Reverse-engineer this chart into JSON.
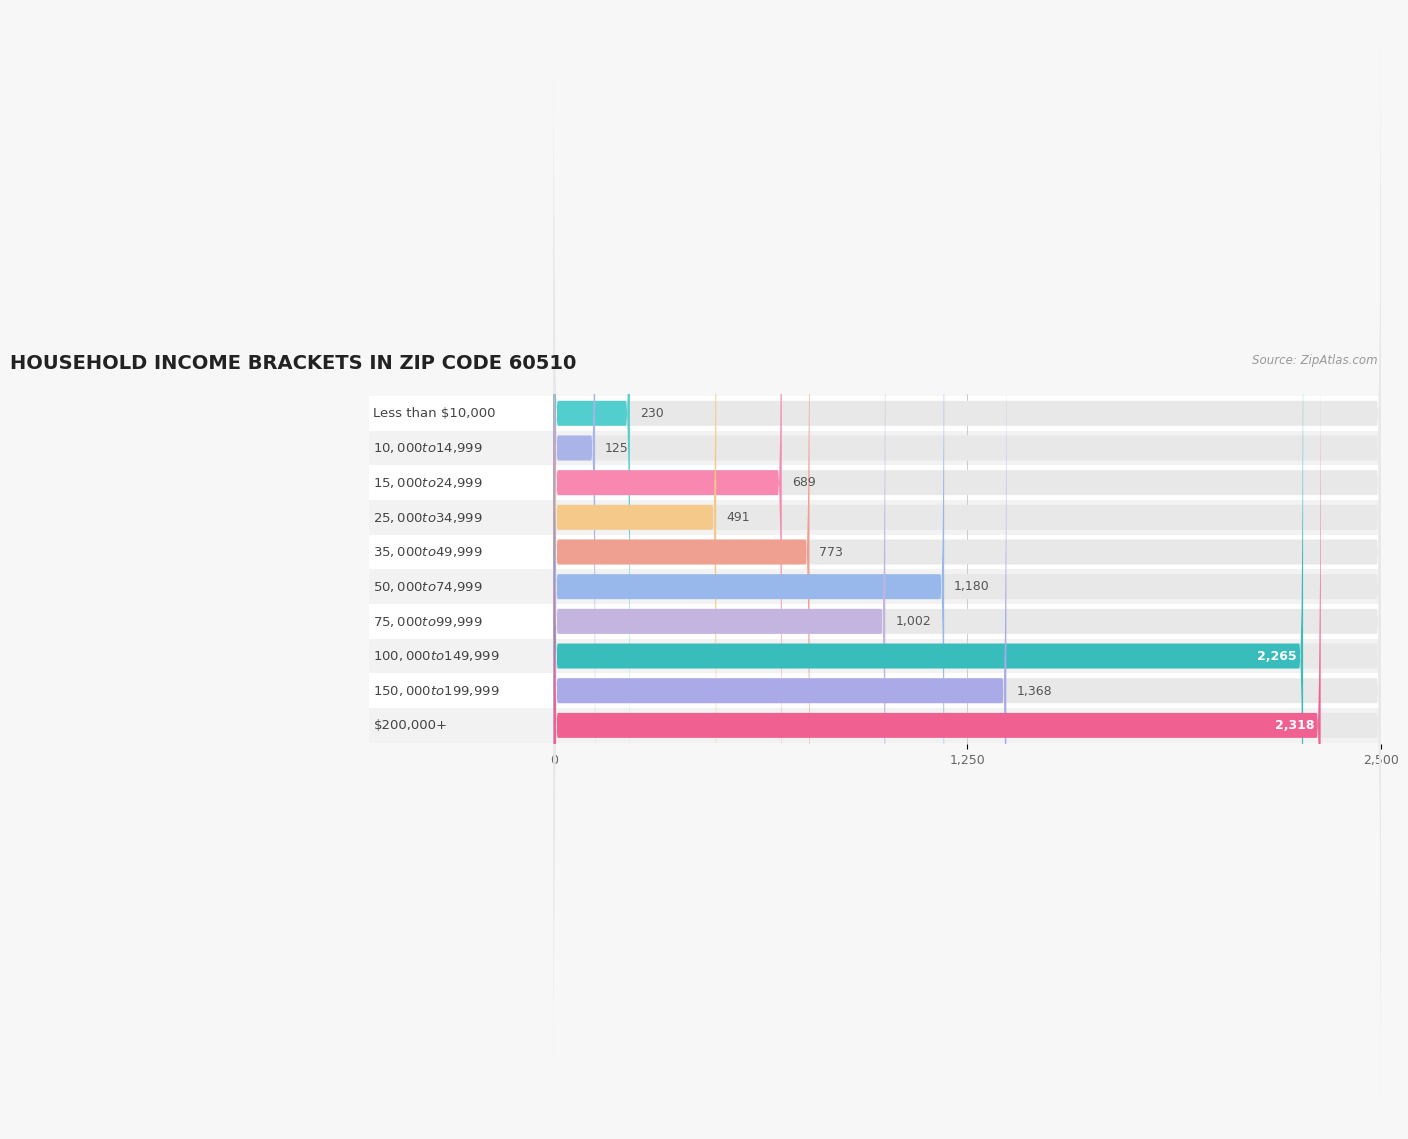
{
  "title": "HOUSEHOLD INCOME BRACKETS IN ZIP CODE 60510",
  "source": "Source: ZipAtlas.com",
  "categories": [
    "Less than $10,000",
    "$10,000 to $14,999",
    "$15,000 to $24,999",
    "$25,000 to $34,999",
    "$35,000 to $49,999",
    "$50,000 to $74,999",
    "$75,000 to $99,999",
    "$100,000 to $149,999",
    "$150,000 to $199,999",
    "$200,000+"
  ],
  "values": [
    230,
    125,
    689,
    491,
    773,
    1180,
    1002,
    2265,
    1368,
    2318
  ],
  "bar_colors": [
    "#52cece",
    "#aab4e8",
    "#f888b0",
    "#f5c98a",
    "#f0a090",
    "#98b8ec",
    "#c4b4e0",
    "#38bcbc",
    "#aaaae8",
    "#f06090"
  ],
  "xlim_min": -560,
  "xlim_max": 2500,
  "x_label_end": 540,
  "xticks": [
    0,
    1250,
    2500
  ],
  "background_color": "#f7f7f7",
  "bar_bg_color": "#e8e8e8",
  "row_bg_colors": [
    "#ffffff",
    "#f0f0f0"
  ],
  "title_fontsize": 14,
  "label_fontsize": 9.5,
  "value_fontsize": 9,
  "bar_height": 0.72,
  "bar_gap": 1.0
}
